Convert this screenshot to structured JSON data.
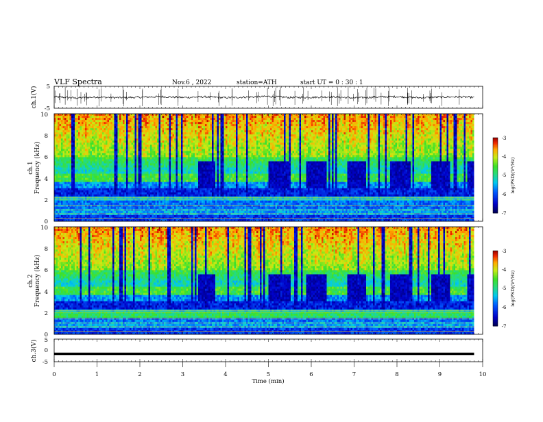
{
  "header": {
    "title": "VLF  Spectra",
    "date": "Nov.6  , 2022",
    "station": "station=ATH",
    "start": "start  UT  =    0  : 30 : 1"
  },
  "colors": {
    "spectrum_low": "#00007a",
    "spectrum_mid": "#33e02a",
    "spectrum_high": "#c80000",
    "trace": "#000000"
  },
  "chart_data": [
    {
      "type": "line",
      "ylabel": "ch.1(V)",
      "ylim": [
        -5,
        5
      ],
      "yticks": [
        "5",
        "-5"
      ],
      "xlim": [
        0,
        10
      ],
      "description_series": "waveform centred near 0 V with spikes",
      "x": [
        0,
        0.5,
        1,
        1.5,
        2,
        2.5,
        3,
        3.5,
        4,
        4.5,
        5,
        5.5,
        6,
        6.5,
        7,
        7.5,
        8,
        8.5,
        9,
        9.5,
        9.8
      ],
      "y": [
        0.2,
        -0.3,
        0.1,
        -0.2,
        0.0,
        0.3,
        -0.1,
        0.2,
        -0.2,
        0.1,
        0.4,
        -0.1,
        0.0,
        0.2,
        -0.3,
        0.1,
        0.3,
        -0.2,
        0.1,
        0.2,
        -0.1
      ]
    },
    {
      "type": "heatmap",
      "ylabel_line1": "ch.1",
      "ylabel_line2": "Frequency  (kHz)",
      "xlim": [
        0,
        10
      ],
      "ylim": [
        0,
        10
      ],
      "yticks": [
        "0",
        "2",
        "4",
        "6",
        "8",
        "10"
      ],
      "colorbar": {
        "label": "log(PSD)(V²/Hz)",
        "range": [
          -7,
          -3
        ],
        "ticks": [
          "-3",
          "-4",
          "-5",
          "-6",
          "-7"
        ]
      }
    },
    {
      "type": "heatmap",
      "ylabel_line1": "ch.2",
      "ylabel_line2": "Frequency  (kHz)",
      "xlim": [
        0,
        10
      ],
      "ylim": [
        0,
        10
      ],
      "yticks": [
        "0",
        "2",
        "4",
        "6",
        "8",
        "10"
      ],
      "colorbar": {
        "label": "log(PSD)(V²/Hz)",
        "range": [
          -7,
          -3
        ],
        "ticks": [
          "-3",
          "-4",
          "-5",
          "-6",
          "-7"
        ]
      }
    },
    {
      "type": "line",
      "ylabel": "ch.3(V)",
      "ylim": [
        -5,
        5
      ],
      "yticks": [
        "5",
        "0",
        "-5"
      ],
      "xlim": [
        0,
        10
      ],
      "x": [
        0,
        9.8
      ],
      "y": [
        -1.5,
        -1.5
      ]
    }
  ],
  "xaxis": {
    "label": "Time  (min)",
    "ticks": [
      "0",
      "1",
      "2",
      "3",
      "4",
      "5",
      "6",
      "7",
      "8",
      "9",
      "10"
    ]
  }
}
